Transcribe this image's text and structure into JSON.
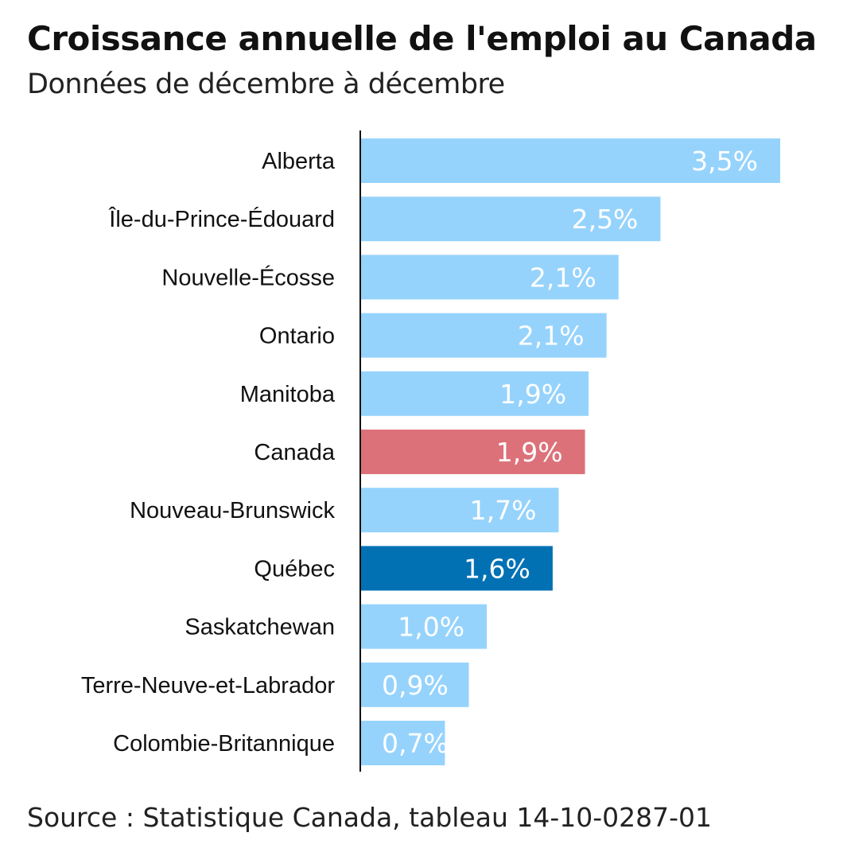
{
  "title": "Croissance annuelle de l'emploi au Canada",
  "subtitle": "Données de décembre à décembre",
  "source": "Source : Statistique Canada, tableau 14-10-0287-01",
  "colors": {
    "default": "#96d3fc",
    "canada": "#dc717a",
    "quebec": "#0171b4",
    "axis": "#111111",
    "label_text": "#ffffff"
  },
  "chart_data": {
    "type": "bar",
    "orientation": "horizontal",
    "categories": [
      "Alberta",
      "Île-du-Prince-Édouard",
      "Nouvelle-Écosse",
      "Ontario",
      "Manitoba",
      "Canada",
      "Nouveau-Brunswick",
      "Québec",
      "Saskatchewan",
      "Terre-Neuve-et-Labrador",
      "Colombie-Britannique"
    ],
    "values": [
      3.5,
      2.5,
      2.15,
      2.05,
      1.9,
      1.87,
      1.65,
      1.6,
      1.05,
      0.9,
      0.7
    ],
    "labels": [
      "3,5%",
      "2,5%",
      "2,1%",
      "2,1%",
      "1,9%",
      "1,9%",
      "1,7%",
      "1,6%",
      "1,0%",
      "0,9%",
      "0,7%"
    ],
    "highlight": [
      "default",
      "default",
      "default",
      "default",
      "default",
      "canada",
      "default",
      "quebec",
      "default",
      "default",
      "default"
    ],
    "xlim": [
      0,
      3.5
    ],
    "grid": false,
    "legend": "none"
  }
}
